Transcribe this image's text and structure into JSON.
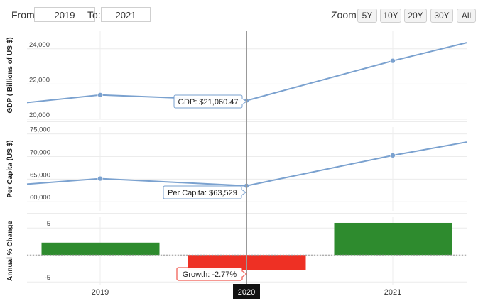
{
  "range": {
    "from_label": "From:",
    "from_value": "2019",
    "to_label": "To:",
    "to_value": "2021"
  },
  "zoom": {
    "label": "Zoom:",
    "buttons": [
      "5Y",
      "10Y",
      "20Y",
      "30Y",
      "All"
    ]
  },
  "colors": {
    "line": "#7aa1cf",
    "positive": "#2e8b2e",
    "negative": "#ee3024",
    "crosshair": "#999999"
  },
  "chart_data": [
    {
      "type": "line",
      "ylabel": "GDP ( Billions of US $)",
      "x": [
        2018.5,
        2019,
        2020,
        2021,
        2021.5
      ],
      "values": [
        20950,
        21380,
        21060.47,
        23320,
        24350
      ],
      "ylim": [
        20000,
        25000
      ],
      "ticks": [
        "20,000",
        "22,000",
        "24,000"
      ],
      "tick_values": [
        20000,
        22000,
        24000
      ],
      "tooltip": "GDP: $21,060.47"
    },
    {
      "type": "line",
      "ylabel": "Per Capita (US $)",
      "x": [
        2018.5,
        2019,
        2020,
        2021,
        2021.5
      ],
      "values": [
        63900,
        65120,
        63529,
        70250,
        73200
      ],
      "ylim": [
        58000,
        76500
      ],
      "ticks": [
        "60,000",
        "65,000",
        "70,000",
        "75,000"
      ],
      "tick_values": [
        60000,
        65000,
        70000,
        75000
      ],
      "tooltip": "Per Capita: $63,529"
    },
    {
      "type": "bar",
      "ylabel": "Annual % Change",
      "x": [
        2019,
        2020,
        2021
      ],
      "values": [
        2.29,
        -2.77,
        5.95
      ],
      "ylim": [
        -5.5,
        7
      ],
      "ticks": [
        "-5",
        "0",
        "5"
      ],
      "tick_values": [
        -5,
        0,
        5
      ],
      "tooltip": "Growth: -2.77%"
    }
  ],
  "xaxis": {
    "categories": [
      "2019",
      "2020",
      "2021"
    ],
    "highlight": "2020"
  }
}
